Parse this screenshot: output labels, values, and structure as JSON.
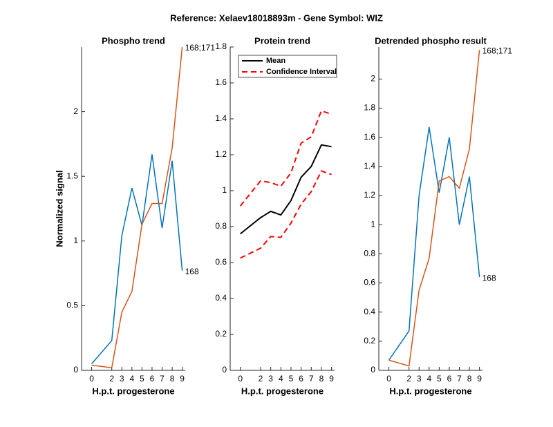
{
  "title": "Reference:  Xelaev18018893m - Gene Symbol:  WIZ",
  "chart_data": [
    {
      "type": "line",
      "title": "Phospho trend",
      "xlabel": "H.p.t. progesterone",
      "ylabel": "Normalized signal",
      "x": [
        0,
        2,
        3,
        4,
        5,
        6,
        7,
        8,
        9
      ],
      "xlim": [
        -1,
        9.3
      ],
      "xticks": [
        0,
        2,
        3,
        4,
        5,
        6,
        7,
        8,
        9
      ],
      "ylim": [
        0,
        2.5
      ],
      "yticks": [
        0,
        0.5,
        1,
        1.5,
        2
      ],
      "end_labels": true,
      "series": [
        {
          "name": "168",
          "color": "#0072bd",
          "values": [
            0.05,
            0.23,
            1.04,
            1.41,
            1.12,
            1.67,
            1.1,
            1.62,
            0.77
          ]
        },
        {
          "name": "168;171",
          "color": "#d95319",
          "values": [
            0.04,
            0.02,
            0.45,
            0.61,
            1.13,
            1.29,
            1.29,
            1.72,
            2.5
          ]
        }
      ]
    },
    {
      "type": "line",
      "title": "Protein trend",
      "xlabel": "H.p.t. progesterone",
      "x": [
        0,
        2,
        3,
        4,
        5,
        6,
        7,
        8,
        9
      ],
      "xlim": [
        -1,
        9.3
      ],
      "xticks": [
        0,
        2,
        3,
        4,
        5,
        6,
        7,
        8,
        9
      ],
      "ylim": [
        0,
        1.8
      ],
      "yticks": [
        0,
        0.2,
        0.4,
        0.6,
        0.8,
        1,
        1.2,
        1.4,
        1.6,
        1.8
      ],
      "legend": "upper left",
      "series": [
        {
          "name": "Mean",
          "color": "#000000",
          "values": [
            0.76,
            0.85,
            0.885,
            0.865,
            0.945,
            1.075,
            1.135,
            1.255,
            1.245
          ]
        },
        {
          "name": "Confidence Interval",
          "color": "#ff0000",
          "dashed": true,
          "upper": [
            0.915,
            1.055,
            1.045,
            1.025,
            1.1,
            1.265,
            1.3,
            1.445,
            1.425
          ],
          "lower": [
            0.625,
            0.68,
            0.745,
            0.74,
            0.82,
            0.925,
            0.995,
            1.11,
            1.09
          ]
        }
      ]
    },
    {
      "type": "line",
      "title": "Detrended phospho result",
      "xlabel": "H.p.t. progesterone",
      "x": [
        0,
        2,
        3,
        4,
        5,
        6,
        7,
        8,
        9
      ],
      "xlim": [
        -1,
        9.3
      ],
      "xticks": [
        0,
        2,
        3,
        4,
        5,
        6,
        7,
        8,
        9
      ],
      "ylim": [
        0,
        2.22
      ],
      "yticks": [
        0,
        0.2,
        0.4,
        0.6,
        0.8,
        1,
        1.2,
        1.4,
        1.6,
        1.8,
        2
      ],
      "end_labels": true,
      "series": [
        {
          "name": "168",
          "color": "#0072bd",
          "values": [
            0.07,
            0.27,
            1.2,
            1.67,
            1.22,
            1.6,
            1.0,
            1.33,
            0.64
          ]
        },
        {
          "name": "168;171",
          "color": "#d95319",
          "values": [
            0.07,
            0.03,
            0.55,
            0.77,
            1.3,
            1.33,
            1.25,
            1.52,
            2.2
          ]
        }
      ]
    }
  ]
}
